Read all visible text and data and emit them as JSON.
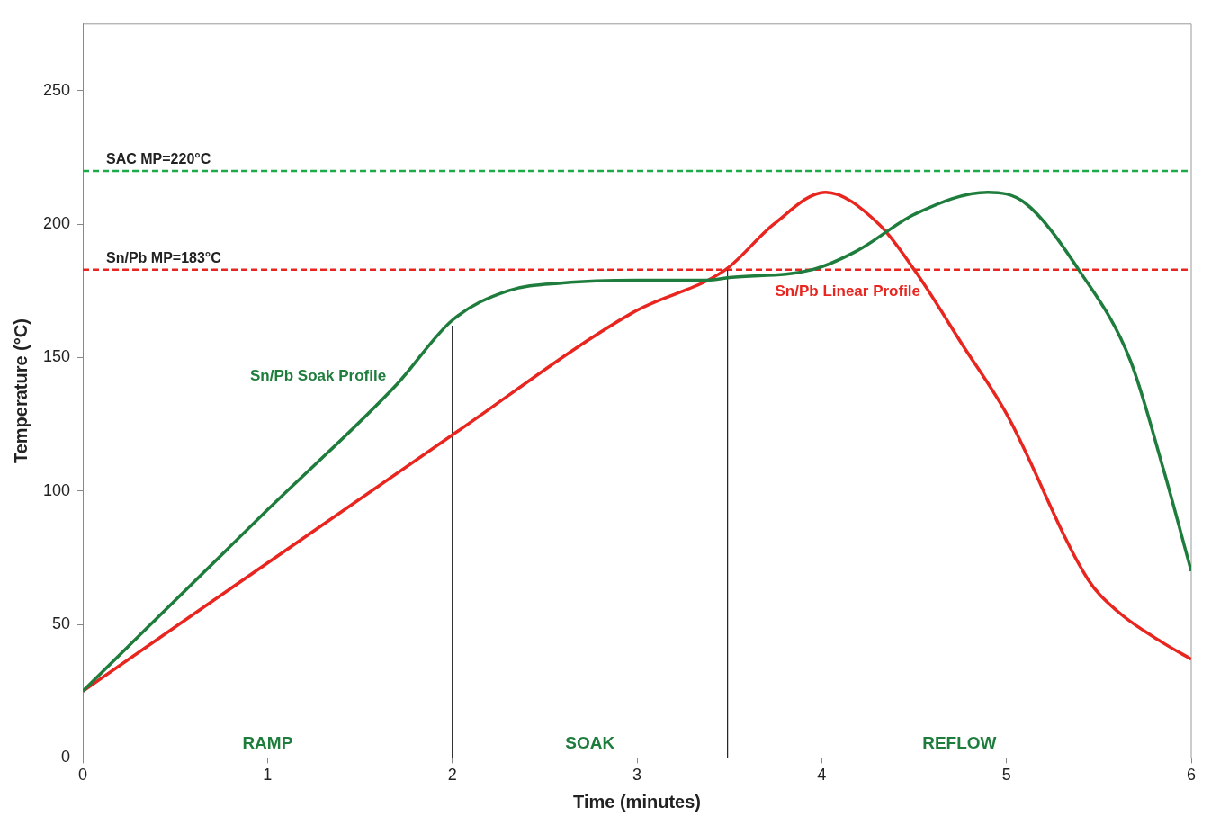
{
  "chart_data": {
    "type": "line",
    "xlabel": "Time (minutes)",
    "ylabel": "Temperature (°C)",
    "xlim": [
      0,
      6
    ],
    "xticks": [
      0,
      1,
      2,
      3,
      4,
      5,
      6
    ],
    "ylim": [
      0,
      275
    ],
    "yticks": [
      0,
      50,
      100,
      150,
      200,
      250
    ],
    "grid": false,
    "legend": false,
    "marker": "none",
    "line_style": "solid",
    "series": [
      {
        "name": "Sn/Pb Soak Profile",
        "color": "#1e7d3c",
        "x": [
          0,
          1,
          1.7,
          2,
          2.3,
          2.6,
          3,
          3.38,
          3.5,
          3.95,
          4.19,
          4.51,
          4.9,
          5.1,
          5.4,
          5.67,
          5.85,
          6
        ],
        "values": [
          25,
          93,
          140,
          164,
          175,
          178,
          179,
          179,
          180,
          183,
          190,
          204,
          212,
          208,
          182,
          149,
          108,
          70
        ]
      },
      {
        "name": "Sn/Pb Linear Profile",
        "color": "#e8251f",
        "x": [
          0,
          2,
          2.98,
          3.48,
          3.74,
          4.02,
          4.31,
          4.51,
          4.76,
          5,
          5.44,
          5.6,
          5.85,
          6
        ],
        "values": [
          25,
          121,
          167,
          183,
          200,
          212,
          200,
          182,
          155,
          129,
          67,
          55,
          43,
          37
        ]
      },
      {
        "type": "line",
        "color": "#222222",
        "x": [
          2,
          2
        ],
        "values": [
          0,
          162
        ]
      },
      {
        "type": "line",
        "color": "#222222",
        "x": [
          3.49,
          3.49
        ],
        "values": [
          0,
          183
        ]
      }
    ],
    "ref_lines": [
      {
        "axis": "y",
        "value": 220,
        "label": "SAC MP=220°C",
        "color": "#1faa4a",
        "line_style": "dashed"
      },
      {
        "axis": "y",
        "value": 183,
        "label": "Sn/Pb MP=183°C",
        "color": "#e8251f",
        "line_style": "dashed"
      }
    ],
    "annotations": [
      "RAMP",
      "SOAK",
      "REFLOW"
    ]
  }
}
